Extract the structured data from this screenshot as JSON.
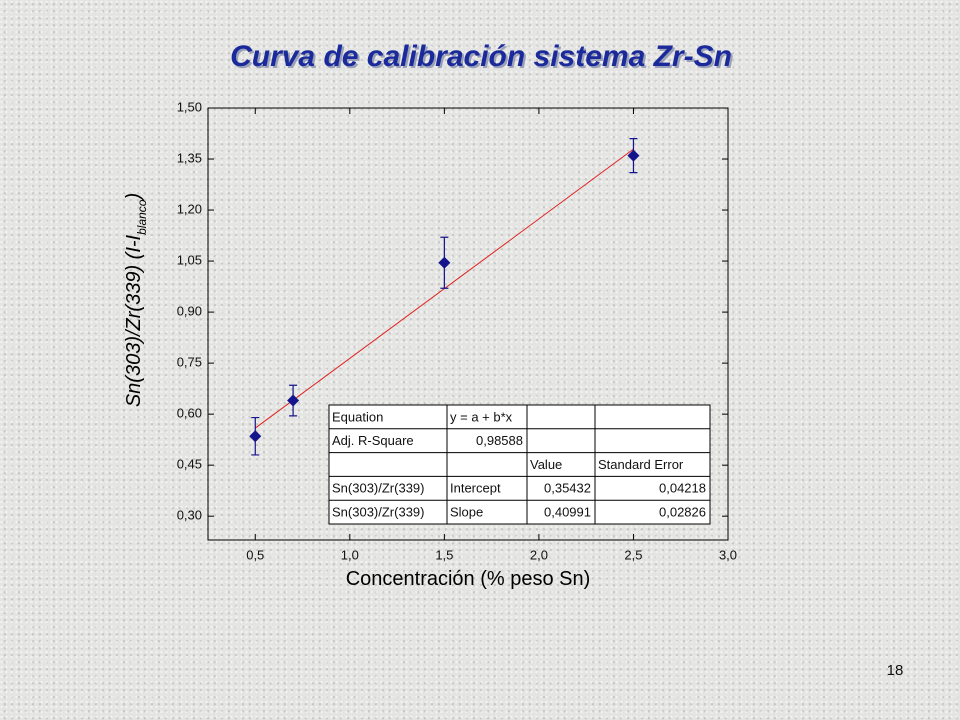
{
  "title": "Curva de calibración  sistema Zr-Sn",
  "page_number": "18",
  "chart_data": {
    "type": "scatter",
    "xlabel": "Concentración (% peso Sn)",
    "ylabel": {
      "main": "Sn(303)/Zr(339) (I-I",
      "subscript": "blanco",
      "end": ")"
    },
    "xlim": [
      0.25,
      3.0
    ],
    "ylim": [
      0.23,
      1.5
    ],
    "xticks": [
      {
        "value": 0.5,
        "label": "0,5"
      },
      {
        "value": 1.0,
        "label": "1,0"
      },
      {
        "value": 1.5,
        "label": "1,5"
      },
      {
        "value": 2.0,
        "label": "2,0"
      },
      {
        "value": 2.5,
        "label": "2,5"
      },
      {
        "value": 3.0,
        "label": "3,0"
      }
    ],
    "yticks": [
      {
        "value": 0.3,
        "label": "0,30"
      },
      {
        "value": 0.45,
        "label": "0,45"
      },
      {
        "value": 0.6,
        "label": "0,60"
      },
      {
        "value": 0.75,
        "label": "0,75"
      },
      {
        "value": 0.9,
        "label": "0,90"
      },
      {
        "value": 1.05,
        "label": "1,05"
      },
      {
        "value": 1.2,
        "label": "1,20"
      },
      {
        "value": 1.35,
        "label": "1,35"
      },
      {
        "value": 1.5,
        "label": "1,50"
      }
    ],
    "series": [
      {
        "color": "#14148c",
        "x": [
          0.5,
          0.7,
          1.5,
          2.5
        ],
        "values": [
          0.535,
          0.64,
          1.045,
          1.36
        ],
        "errors": [
          0.055,
          0.045,
          0.075,
          0.05
        ]
      }
    ],
    "fit_line": {
      "color": "#e02020",
      "x": [
        0.5,
        2.5
      ],
      "values": [
        0.559,
        1.379
      ]
    },
    "table": {
      "rows": [
        [
          "Equation",
          "y = a + b*x",
          null,
          null
        ],
        [
          "Adj. R-Square",
          "0,98588",
          null,
          null
        ],
        [
          null,
          null,
          "Value",
          "Standard Error"
        ],
        [
          "Sn(303)/Zr(339)",
          "Intercept",
          "0,35432",
          "0,04218"
        ],
        [
          "Sn(303)/Zr(339)",
          "Slope",
          "0,40991",
          "0,02826"
        ]
      ]
    }
  }
}
